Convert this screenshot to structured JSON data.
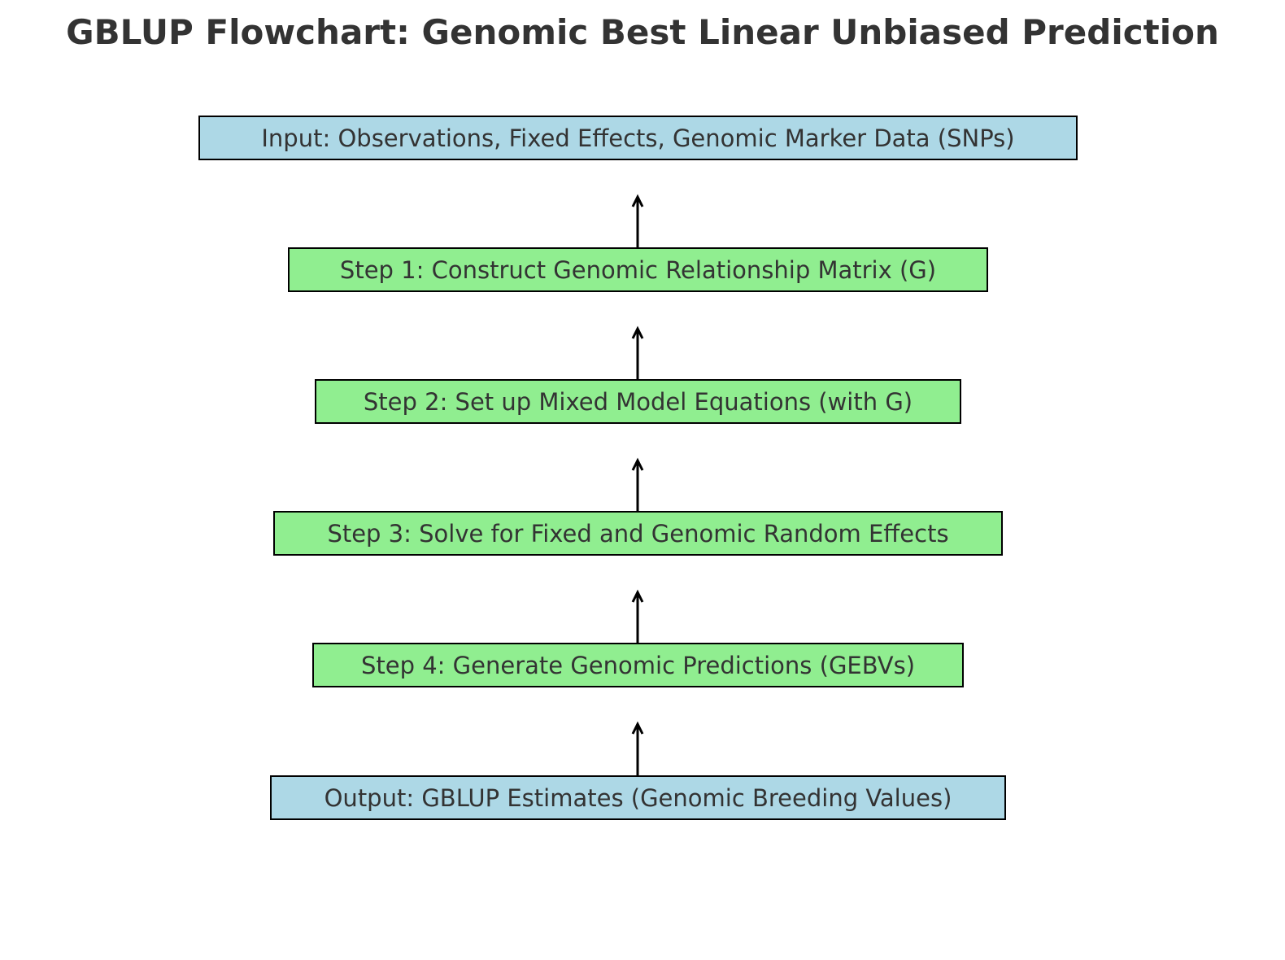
{
  "title": "GBLUP Flowchart: Genomic Best Linear Unbiased Prediction",
  "colors": {
    "title_text": "#333333",
    "node_text": "#333333",
    "io_fill": "#add8e6",
    "step_fill": "#90ee90",
    "border": "#000000",
    "arrow": "#000000"
  },
  "nodes": [
    {
      "id": "input",
      "kind": "io",
      "label": "Input: Observations, Fixed Effects, Genomic Marker Data (SNPs)"
    },
    {
      "id": "step1",
      "kind": "step",
      "label": "Step 1: Construct Genomic Relationship Matrix (G)"
    },
    {
      "id": "step2",
      "kind": "step",
      "label": "Step 2: Set up Mixed Model Equations (with G)"
    },
    {
      "id": "step3",
      "kind": "step",
      "label": "Step 3: Solve for Fixed and Genomic Random Effects"
    },
    {
      "id": "step4",
      "kind": "step",
      "label": "Step 4: Generate Genomic Predictions (GEBVs)"
    },
    {
      "id": "output",
      "kind": "io",
      "label": "Output: GBLUP Estimates (Genomic Breeding Values)"
    }
  ],
  "edges": [
    {
      "from": "step1",
      "to": "input"
    },
    {
      "from": "step2",
      "to": "step1"
    },
    {
      "from": "step3",
      "to": "step2"
    },
    {
      "from": "step4",
      "to": "step3"
    },
    {
      "from": "output",
      "to": "step4"
    }
  ]
}
